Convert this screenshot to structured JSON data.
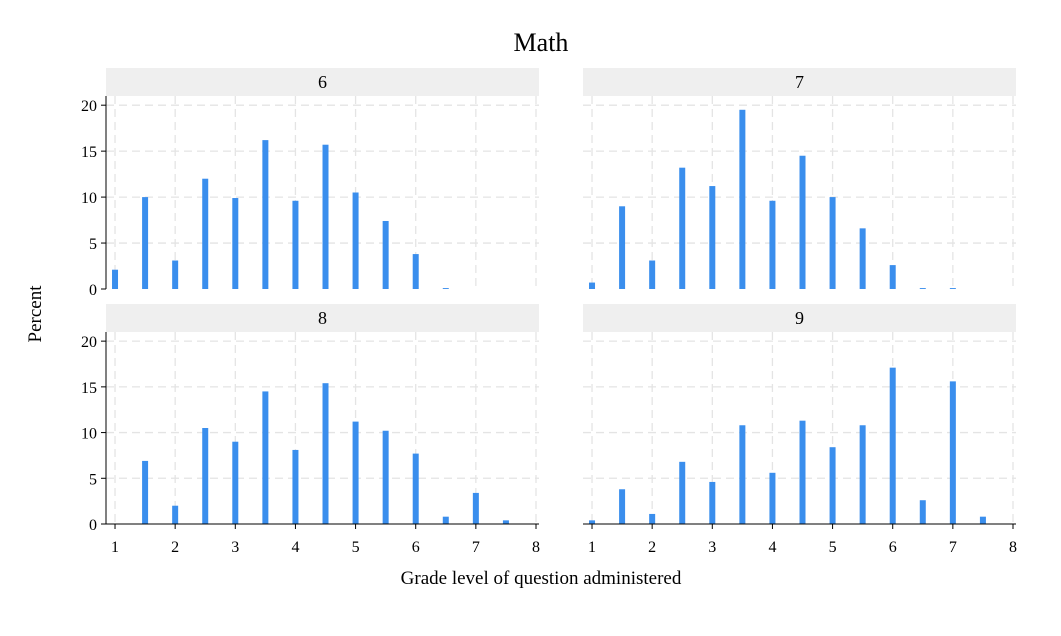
{
  "chart_data": {
    "type": "bar",
    "title": "Math",
    "xlabel": "Grade level of question administered",
    "ylabel": "Percent",
    "xlim": [
      0.85,
      8.05
    ],
    "ylim": [
      0,
      21
    ],
    "xticks": [
      1,
      2,
      3,
      4,
      5,
      6,
      7,
      8
    ],
    "yticks": [
      0,
      5,
      10,
      15,
      20
    ],
    "grid": true,
    "bar_color": "#3a8eed",
    "header_color": "#efefef",
    "grid_color": "#e4e4e4",
    "x": [
      1,
      1.5,
      2,
      2.5,
      3,
      3.5,
      4,
      4.5,
      5,
      5.5,
      6,
      6.5,
      7,
      7.5
    ],
    "panels": [
      {
        "label": "6",
        "values": [
          2.1,
          10.0,
          3.1,
          12.0,
          9.9,
          16.2,
          9.6,
          15.7,
          10.5,
          7.4,
          3.8,
          0.1,
          0,
          0
        ]
      },
      {
        "label": "7",
        "values": [
          0.7,
          9.0,
          3.1,
          13.2,
          11.2,
          19.5,
          9.6,
          14.5,
          10.0,
          6.6,
          2.6,
          0.1,
          0.1,
          0
        ]
      },
      {
        "label": "8",
        "values": [
          0,
          6.9,
          2.0,
          10.5,
          9.0,
          14.5,
          8.1,
          15.4,
          11.2,
          10.2,
          7.7,
          0.8,
          3.4,
          0.4
        ]
      },
      {
        "label": "9",
        "values": [
          0.4,
          3.8,
          1.1,
          6.8,
          4.6,
          10.8,
          5.6,
          11.3,
          8.4,
          10.8,
          17.1,
          2.6,
          15.6,
          0.8
        ]
      }
    ]
  }
}
